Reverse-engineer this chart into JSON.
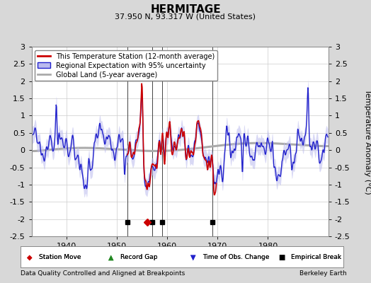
{
  "title": "HERMITAGE",
  "subtitle": "37.950 N, 93.317 W (United States)",
  "ylabel": "Temperature Anomaly (°C)",
  "footer_left": "Data Quality Controlled and Aligned at Breakpoints",
  "footer_right": "Berkeley Earth",
  "xlim": [
    1933,
    1992
  ],
  "ylim": [
    -2.5,
    3.0
  ],
  "yticks": [
    -2.5,
    -2,
    -1.5,
    -1,
    -0.5,
    0,
    0.5,
    1,
    1.5,
    2,
    2.5,
    3
  ],
  "ytick_labels": [
    "-2.5",
    "-2",
    "-1.5",
    "-1",
    "-0.5",
    "0",
    "0.5",
    "1",
    "1.5",
    "2",
    "2.5",
    "3"
  ],
  "xticks": [
    1940,
    1950,
    1960,
    1970,
    1980
  ],
  "background_color": "#d8d8d8",
  "plot_bg_color": "#ffffff",
  "grid_color": "#cccccc",
  "station_line_color": "#cc0000",
  "regional_line_color": "#2222cc",
  "regional_fill_color": "#bbbbee",
  "global_line_color": "#aaaaaa",
  "empirical_breaks": [
    1952,
    1957,
    1959,
    1969
  ],
  "station_moves": [
    1956
  ],
  "record_gaps": [],
  "time_obs_changes": [],
  "event_y": -2.08,
  "vertical_lines": [
    1952,
    1957,
    1959,
    1969
  ],
  "title_fontsize": 11,
  "subtitle_fontsize": 8,
  "tick_fontsize": 8,
  "legend_fontsize": 7,
  "footer_fontsize": 6.5
}
